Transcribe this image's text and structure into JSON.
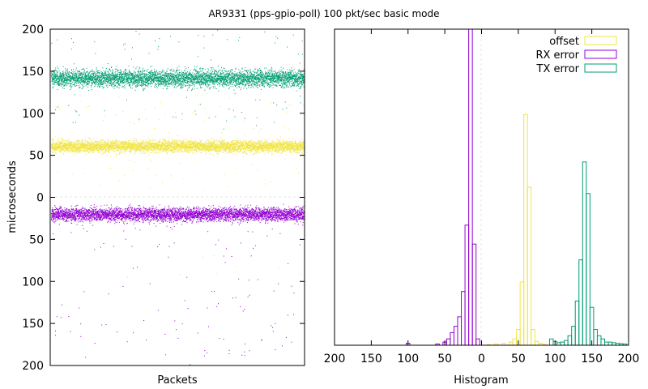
{
  "chart_data": [
    {
      "type": "scatter",
      "title": "AR9331 (pps-gpio-poll) 100 pkt/sec basic mode",
      "xlabel": "Packets",
      "ylabel": "microseconds",
      "ylim": [
        -200,
        200
      ],
      "ytick_values": [
        200,
        150,
        100,
        50,
        0,
        -50,
        -100,
        -150,
        -200
      ],
      "ytick_labels": [
        "200",
        "150",
        "100",
        "50",
        "0",
        "50",
        "100",
        "150",
        "200"
      ],
      "n_packets": 5000,
      "grid": "zero-line",
      "series": [
        {
          "name": "TX error",
          "color": "#009e73",
          "center": 142,
          "spread": 5,
          "outliers": [
            200,
            95,
            100,
            190,
            185,
            130,
            110,
            160
          ]
        },
        {
          "name": "offset",
          "color": "#f0e442",
          "center": 61,
          "spread": 3.5,
          "outliers": [
            100,
            95,
            20,
            30,
            40,
            -80,
            85,
            115
          ]
        },
        {
          "name": "RX error",
          "color": "#9400d3",
          "center": -20,
          "spread": 4,
          "outliers": [
            -50,
            -70,
            -100,
            -140,
            -160,
            -175,
            -190,
            -120,
            -30,
            -45
          ]
        }
      ]
    },
    {
      "type": "histogram",
      "xlabel": "Histogram",
      "xlim": [
        -200,
        200
      ],
      "xtick_values": [
        -200,
        -150,
        -100,
        -50,
        0,
        50,
        100,
        150,
        200
      ],
      "xtick_labels": [
        "200",
        "150",
        "100",
        "50",
        "0",
        "50",
        "100",
        "150",
        "200"
      ],
      "legend_position": "top-right",
      "bin_width": 5,
      "series": [
        {
          "name": "offset",
          "color": "#f0e442",
          "bins": [
            [
              10,
              0.002
            ],
            [
              20,
              0.004
            ],
            [
              30,
              0.006
            ],
            [
              40,
              0.01
            ],
            [
              45,
              0.02
            ],
            [
              50,
              0.05
            ],
            [
              55,
              0.2
            ],
            [
              60,
              0.73
            ],
            [
              65,
              0.5
            ],
            [
              70,
              0.05
            ],
            [
              75,
              0.012
            ],
            [
              80,
              0.006
            ],
            [
              85,
              0.003
            ]
          ]
        },
        {
          "name": "RX error",
          "color": "#9400d3",
          "bins": [
            [
              -100,
              0.006
            ],
            [
              -60,
              0.004
            ],
            [
              -50,
              0.01
            ],
            [
              -45,
              0.02
            ],
            [
              -40,
              0.04
            ],
            [
              -35,
              0.06
            ],
            [
              -30,
              0.09
            ],
            [
              -25,
              0.17
            ],
            [
              -20,
              0.38
            ],
            [
              -15,
              1.0
            ],
            [
              -10,
              0.32
            ],
            [
              -5,
              0.02
            ]
          ]
        },
        {
          "name": "TX error",
          "color": "#009e73",
          "bins": [
            [
              95,
              0.02
            ],
            [
              100,
              0.012
            ],
            [
              105,
              0.008
            ],
            [
              110,
              0.01
            ],
            [
              115,
              0.015
            ],
            [
              120,
              0.03
            ],
            [
              125,
              0.06
            ],
            [
              130,
              0.14
            ],
            [
              135,
              0.27
            ],
            [
              140,
              0.58
            ],
            [
              145,
              0.48
            ],
            [
              150,
              0.12
            ],
            [
              155,
              0.05
            ],
            [
              160,
              0.03
            ],
            [
              165,
              0.02
            ],
            [
              170,
              0.01
            ],
            [
              175,
              0.01
            ],
            [
              180,
              0.008
            ],
            [
              185,
              0.006
            ],
            [
              190,
              0.005
            ],
            [
              195,
              0.004
            ]
          ]
        }
      ]
    }
  ]
}
